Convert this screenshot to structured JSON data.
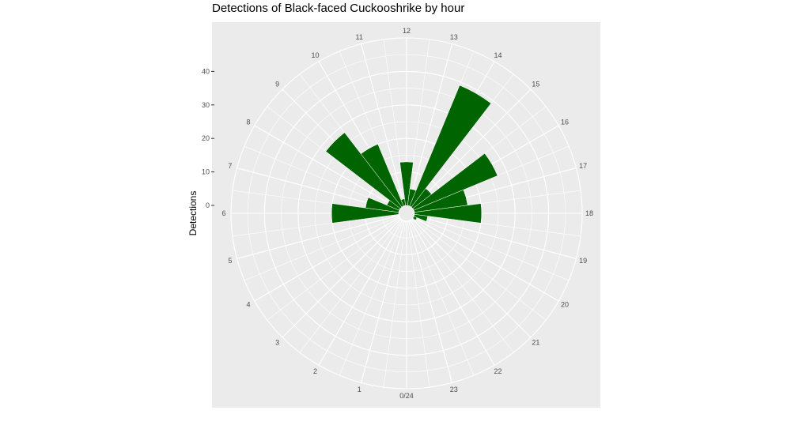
{
  "chart_data": {
    "type": "bar",
    "coordinate_system": "polar",
    "title": "Detections of Black-faced Cuckooshrike by hour",
    "xlabel": "",
    "ylabel": "Detections",
    "categories": [
      "0/24",
      "1",
      "2",
      "3",
      "4",
      "5",
      "6",
      "7",
      "8",
      "9",
      "10",
      "11",
      "12",
      "13",
      "14",
      "15",
      "16",
      "17",
      "18",
      "19",
      "20",
      "21",
      "22",
      "23"
    ],
    "values": [
      0,
      0,
      0,
      0,
      0,
      0,
      20,
      10,
      4,
      28,
      20,
      2,
      13,
      5,
      39,
      7,
      27,
      16,
      20,
      4,
      1,
      0,
      0,
      0
    ],
    "yticks": [
      0,
      10,
      20,
      30,
      40
    ],
    "ylim": [
      0,
      50
    ],
    "grid": true,
    "bar_color": "#006400",
    "panel_color": "#ebebeb"
  }
}
